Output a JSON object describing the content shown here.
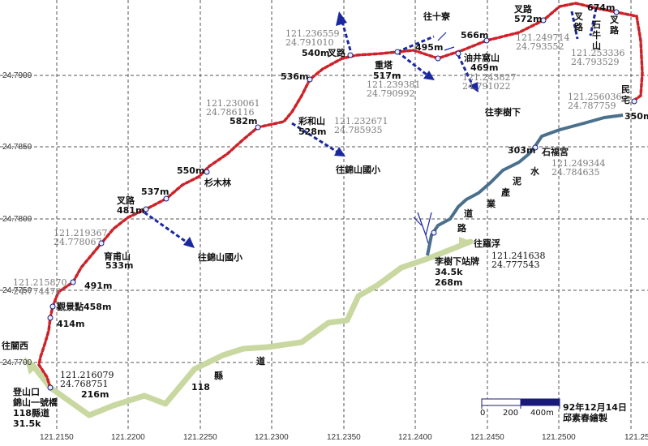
{
  "axes": {
    "lat_labels": [
      "24.7900",
      "24.7850",
      "24.7800",
      "24.7750",
      "24.7700"
    ],
    "lon_labels": [
      "121.2150",
      "121.2200",
      "121.2250",
      "121.2300",
      "121.2350",
      "121.2400",
      "121.2450",
      "121.2500",
      "121.25"
    ]
  },
  "elevations": {
    "e216": "216m",
    "e414": "414m",
    "e458": "觀景點458m",
    "e491": "491m",
    "e533a": "育甫山",
    "e533b": "533m",
    "e481a": "叉路",
    "e481b": "481m",
    "e537": "537m",
    "e550": "550m",
    "e_shanmu": "杉木林",
    "e582": "582m",
    "e528a": "彩和山",
    "e528b": "528m",
    "e536": "536m",
    "e540a": "540m",
    "e540b": "叉路",
    "e517a": "重塔",
    "e517b": "517m",
    "e495": "495m",
    "e469a": "油井窩山",
    "e469b": "469m",
    "e566": "566m",
    "e572a": "叉路",
    "e572b": "572m",
    "e674": "674m",
    "e350": "350m",
    "e303": "303m",
    "shifugong": "石福宮"
  },
  "vertical_labels": {
    "chalu1": "叉\n路",
    "shiniushan": "石\n牛\n山",
    "chalu2": "叉\n路",
    "minzhai": "民\n宅"
  },
  "coords": {
    "c1a": "121.216079",
    "c1b": "24.768751",
    "c2a": "121.215870",
    "c2b": "24.774472",
    "c3a": "121.219367",
    "c3b": "24.778067",
    "c4a": "121.230061",
    "c4b": "24.786116",
    "c5a": "121.232671",
    "c5b": "24.785935",
    "c6a": "121.236559",
    "c6b": "24.791010",
    "c7a": "121.239381",
    "c7b": "24.790992",
    "c8a": "121.243827",
    "c8b": "24.791022",
    "c9a": "121.249714",
    "c9b": "24.793552",
    "c10a": "121.253336",
    "c10b": "24.793529",
    "c11a": "121.256036",
    "c11b": "24.787759",
    "c12a": "121.249344",
    "c12b": "24.784635",
    "c13a": "121.241638",
    "c13b": "24.777543"
  },
  "places": {
    "start_a": "登山口",
    "start_b": "錦山一號橋",
    "start_c": "118縣道",
    "start_d": "31.5k",
    "to_guanxi": "往關西",
    "to_jinshan1": "往錦山國小",
    "to_jinshan2": "往錦山國小",
    "to_shiliao": "往十寮",
    "to_lishuxia": "往李樹下",
    "to_luofu": "往羅浮",
    "lishuxia_stop_a": "李樹下站牌",
    "lishuxia_stop_b": "34.5k",
    "lishuxia_stop_c": "268m",
    "road118_a": "118",
    "road118_b": "縣",
    "road118_c": "道",
    "industrial_road": [
      "水",
      "泥",
      "產",
      "業",
      "道",
      "路"
    ]
  },
  "scale_bar": {
    "labels": [
      "0",
      "200",
      "400m"
    ]
  },
  "credit": {
    "date": "92年12月14日",
    "author": "邱素春繪製"
  },
  "colors": {
    "grid": "#555555",
    "trail_dots": "#d82020",
    "trail_cells": "#2050c0",
    "side_arrow": "#1a28a0",
    "industrial_road": "#4a708c",
    "county_road": "#c8d8a0"
  }
}
